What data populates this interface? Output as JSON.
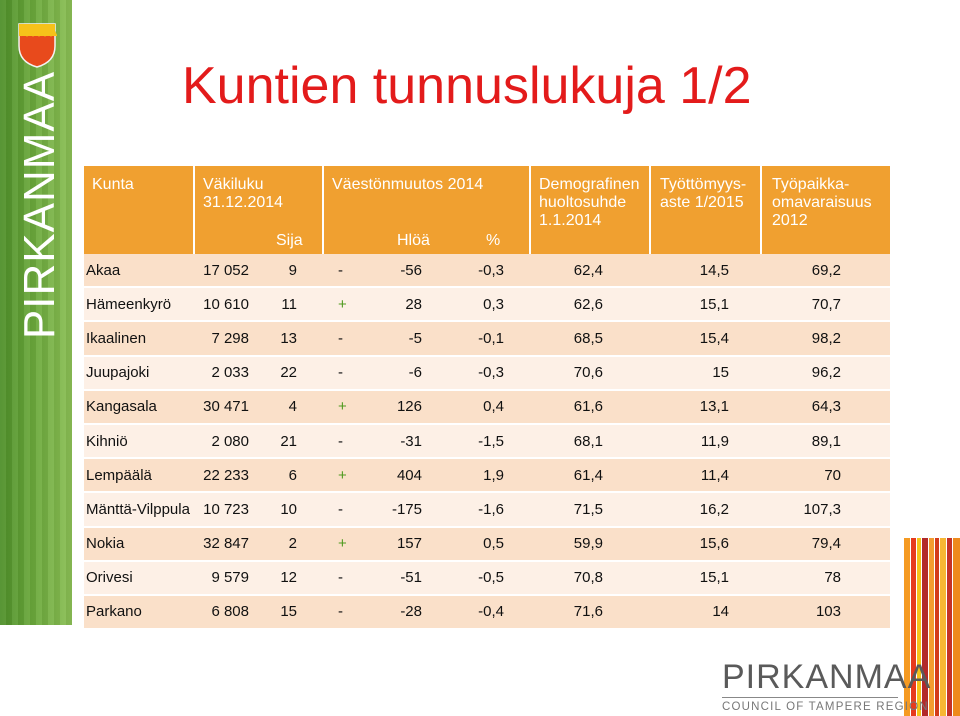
{
  "brand": {
    "vertical_text": "PIRKANMAA",
    "logo_main": "PIRKANMAA",
    "logo_sub": "COUNCIL OF TAMPERE REGION"
  },
  "title": "Kuntien tunnuslukuja 1/2",
  "colors": {
    "title": "#e31b1b",
    "header_bg": "#f0a030",
    "row_odd": "#fae0c9",
    "row_even": "#fdf0e6",
    "plus_sign": "#4e9a1e",
    "band_green": "#6aa83b"
  },
  "header": {
    "kunta": "Kunta",
    "vakiluku_1": "Väkiluku",
    "vakiluku_2": "31.12.2014",
    "sija": "Sija",
    "vaestonmuutos": "Väestönmuutos 2014",
    "hloa": "Hlöä",
    "pros": "%",
    "demo_1": "Demografinen",
    "demo_2": "huoltosuhde",
    "demo_3": "1.1.2014",
    "tyot_1": "Työttömyys-",
    "tyot_2": "aste 1/2015",
    "omav_1": "Työpaikka-",
    "omav_2": "omavaraisuus",
    "omav_3": "2012"
  },
  "rows": [
    {
      "kunta": "Akaa",
      "vakiluku": "17 052",
      "sija": "9",
      "sign": "-",
      "hloa": "-56",
      "pros": "-0,3",
      "demo": "62,4",
      "tyot": "14,5",
      "omav": "69,2"
    },
    {
      "kunta": "Hämeenkyrö",
      "vakiluku": "10 610",
      "sija": "11",
      "sign": "+",
      "hloa": "28",
      "pros": "0,3",
      "demo": "62,6",
      "tyot": "15,1",
      "omav": "70,7"
    },
    {
      "kunta": "Ikaalinen",
      "vakiluku": "7 298",
      "sija": "13",
      "sign": "-",
      "hloa": "-5",
      "pros": "-0,1",
      "demo": "68,5",
      "tyot": "15,4",
      "omav": "98,2"
    },
    {
      "kunta": "Juupajoki",
      "vakiluku": "2 033",
      "sija": "22",
      "sign": "-",
      "hloa": "-6",
      "pros": "-0,3",
      "demo": "70,6",
      "tyot": "15",
      "omav": "96,2"
    },
    {
      "kunta": "Kangasala",
      "vakiluku": "30 471",
      "sija": "4",
      "sign": "+",
      "hloa": "126",
      "pros": "0,4",
      "demo": "61,6",
      "tyot": "13,1",
      "omav": "64,3"
    },
    {
      "kunta": "Kihniö",
      "vakiluku": "2 080",
      "sija": "21",
      "sign": "-",
      "hloa": "-31",
      "pros": "-1,5",
      "demo": "68,1",
      "tyot": "11,9",
      "omav": "89,1"
    },
    {
      "kunta": "Lempäälä",
      "vakiluku": "22 233",
      "sija": "6",
      "sign": "+",
      "hloa": "404",
      "pros": "1,9",
      "demo": "61,4",
      "tyot": "11,4",
      "omav": "70"
    },
    {
      "kunta": "Mänttä-Vilppula",
      "vakiluku": "10 723",
      "sija": "10",
      "sign": "-",
      "hloa": "-175",
      "pros": "-1,6",
      "demo": "71,5",
      "tyot": "16,2",
      "omav": "107,3"
    },
    {
      "kunta": "Nokia",
      "vakiluku": "32 847",
      "sija": "2",
      "sign": "+",
      "hloa": "157",
      "pros": "0,5",
      "demo": "59,9",
      "tyot": "15,6",
      "omav": "79,4"
    },
    {
      "kunta": "Orivesi",
      "vakiluku": "9 579",
      "sija": "12",
      "sign": "-",
      "hloa": "-51",
      "pros": "-0,5",
      "demo": "70,8",
      "tyot": "15,1",
      "omav": "78"
    },
    {
      "kunta": "Parkano",
      "vakiluku": "6 808",
      "sija": "15",
      "sign": "-",
      "hloa": "-28",
      "pros": "-0,4",
      "demo": "71,6",
      "tyot": "14",
      "omav": "103"
    }
  ]
}
